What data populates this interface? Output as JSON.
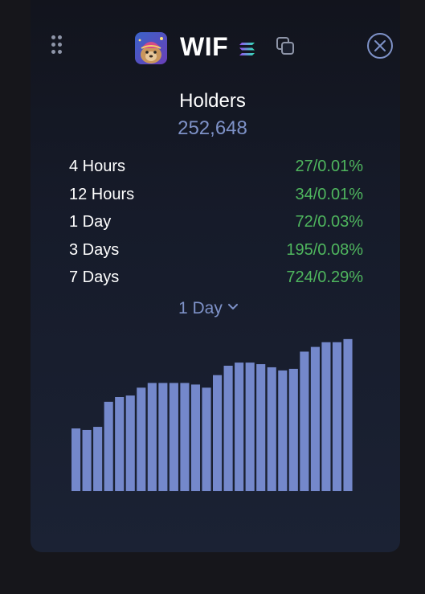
{
  "header": {
    "token_symbol": "WIF",
    "icons": {
      "drag": "drag-handle-icon",
      "logo": "token-logo-icon",
      "chain": "solana-icon",
      "copy": "copy-icon",
      "close": "close-icon"
    }
  },
  "holders": {
    "label": "Holders",
    "value": "252,648"
  },
  "stats": [
    {
      "label": "4 Hours",
      "count": "27",
      "percent": "0.01%"
    },
    {
      "label": "12 Hours",
      "count": "34",
      "percent": "0.01%"
    },
    {
      "label": "1 Day",
      "count": "72",
      "percent": "0.03%"
    },
    {
      "label": "3 Days",
      "count": "195",
      "percent": "0.08%"
    },
    {
      "label": "7 Days",
      "count": "724",
      "percent": "0.29%"
    }
  ],
  "timeframe": {
    "selected": "1 Day"
  },
  "colors": {
    "accent": "#7e92c8",
    "positive": "#4fb65e",
    "bar": "#7488cb",
    "background": "#16161b"
  },
  "chart_data": {
    "type": "bar",
    "series": [
      {
        "values": [
          40,
          39,
          41,
          57,
          60,
          61,
          66,
          69,
          69,
          69,
          69,
          68,
          66,
          74,
          80,
          82,
          82,
          81,
          79,
          77,
          78,
          89,
          92,
          95,
          95,
          97
        ]
      }
    ],
    "grid": false,
    "ylim": [
      0,
      100
    ]
  }
}
